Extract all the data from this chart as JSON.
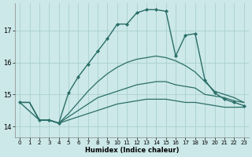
{
  "xlabel": "Humidex (Indice chaleur)",
  "background_color": "#cce8e8",
  "grid_color": "#aad0d0",
  "line_color": "#2a6e68",
  "xlim": [
    -0.5,
    23.5
  ],
  "ylim": [
    13.65,
    17.85
  ],
  "yticks": [
    14,
    15,
    16,
    17
  ],
  "xticks": [
    0,
    1,
    2,
    3,
    4,
    5,
    6,
    7,
    8,
    9,
    10,
    11,
    12,
    13,
    14,
    15,
    16,
    17,
    18,
    19,
    20,
    21,
    22,
    23
  ],
  "series": [
    {
      "x": [
        0,
        1,
        2,
        3,
        4,
        5,
        6,
        7,
        8,
        9,
        10,
        11,
        12,
        13,
        14,
        15,
        16,
        17,
        18,
        19,
        20,
        21,
        22,
        23
      ],
      "y": [
        14.75,
        14.75,
        14.2,
        14.2,
        14.1,
        14.2,
        14.3,
        14.4,
        14.5,
        14.6,
        14.7,
        14.75,
        14.8,
        14.85,
        14.85,
        14.85,
        14.8,
        14.75,
        14.75,
        14.7,
        14.65,
        14.6,
        14.6,
        14.6
      ],
      "marker": false,
      "linewidth": 0.9
    },
    {
      "x": [
        0,
        1,
        2,
        3,
        4,
        5,
        6,
        7,
        8,
        9,
        10,
        11,
        12,
        13,
        14,
        15,
        16,
        17,
        18,
        19,
        20,
        21,
        22,
        23
      ],
      "y": [
        14.75,
        14.75,
        14.2,
        14.2,
        14.1,
        14.3,
        14.5,
        14.7,
        14.9,
        15.0,
        15.1,
        15.2,
        15.3,
        15.35,
        15.4,
        15.4,
        15.3,
        15.25,
        15.2,
        15.0,
        14.95,
        14.9,
        14.8,
        14.75
      ],
      "marker": false,
      "linewidth": 0.9
    },
    {
      "x": [
        0,
        1,
        2,
        3,
        4,
        5,
        6,
        7,
        8,
        9,
        10,
        11,
        12,
        13,
        14,
        15,
        16,
        17,
        18,
        19,
        20,
        21,
        22,
        23
      ],
      "y": [
        14.75,
        14.75,
        14.2,
        14.2,
        14.1,
        14.4,
        14.75,
        15.1,
        15.4,
        15.65,
        15.85,
        16.0,
        16.1,
        16.15,
        16.2,
        16.15,
        16.05,
        15.9,
        15.7,
        15.4,
        15.1,
        15.0,
        14.9,
        14.75
      ],
      "marker": false,
      "linewidth": 0.9
    },
    {
      "x": [
        0,
        2,
        3,
        4,
        5,
        6,
        7,
        8,
        9,
        10,
        11,
        12,
        13,
        14,
        15,
        16,
        17,
        18,
        19,
        20,
        21,
        22,
        23
      ],
      "y": [
        14.75,
        14.2,
        14.2,
        14.1,
        15.05,
        15.55,
        15.95,
        16.35,
        16.75,
        17.2,
        17.2,
        17.55,
        17.65,
        17.65,
        17.6,
        16.2,
        16.85,
        16.9,
        15.45,
        15.05,
        14.85,
        14.75,
        14.65
      ],
      "marker": true,
      "linewidth": 1.0
    }
  ]
}
